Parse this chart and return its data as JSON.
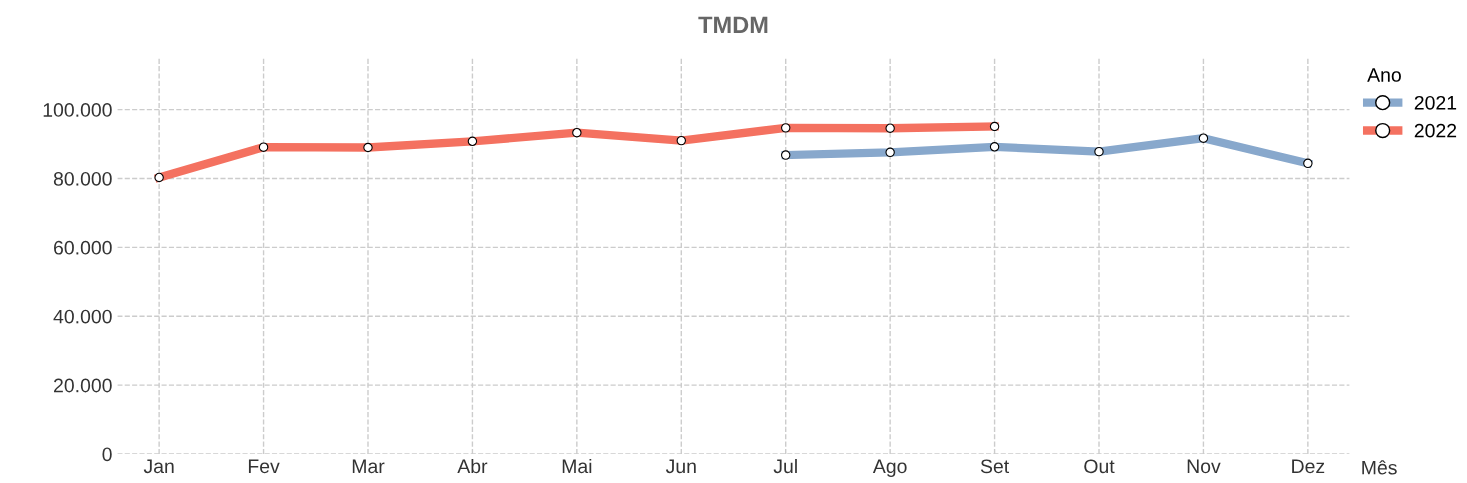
{
  "chart_data": {
    "type": "line",
    "title": "TMDM",
    "xlabel": "Mês",
    "legend_title": "Ano",
    "categories": [
      "Jan",
      "Fev",
      "Mar",
      "Abr",
      "Mai",
      "Jun",
      "Jul",
      "Ago",
      "Set",
      "Out",
      "Nov",
      "Dez"
    ],
    "series": [
      {
        "name": "2021",
        "color": "#88a8cc",
        "values": [
          null,
          null,
          null,
          null,
          null,
          null,
          86800,
          87600,
          89200,
          87800,
          91700,
          84400
        ]
      },
      {
        "name": "2022",
        "color": "#f47160",
        "values": [
          80300,
          89100,
          89000,
          90800,
          93300,
          91000,
          94700,
          94600,
          95100,
          null,
          null,
          null
        ]
      }
    ],
    "ylim": [
      0,
      115000
    ],
    "yticks": [
      0,
      {
        "value": 20000,
        "label": "20.000"
      },
      {
        "value": 40000,
        "label": "40.000"
      },
      {
        "value": 60000,
        "label": "60.000"
      },
      {
        "value": 80000,
        "label": "80.000"
      },
      {
        "value": 100000,
        "label": "100.000"
      }
    ],
    "grid": true,
    "legend": "top right",
    "marker": "circle",
    "line_style": "solid"
  }
}
